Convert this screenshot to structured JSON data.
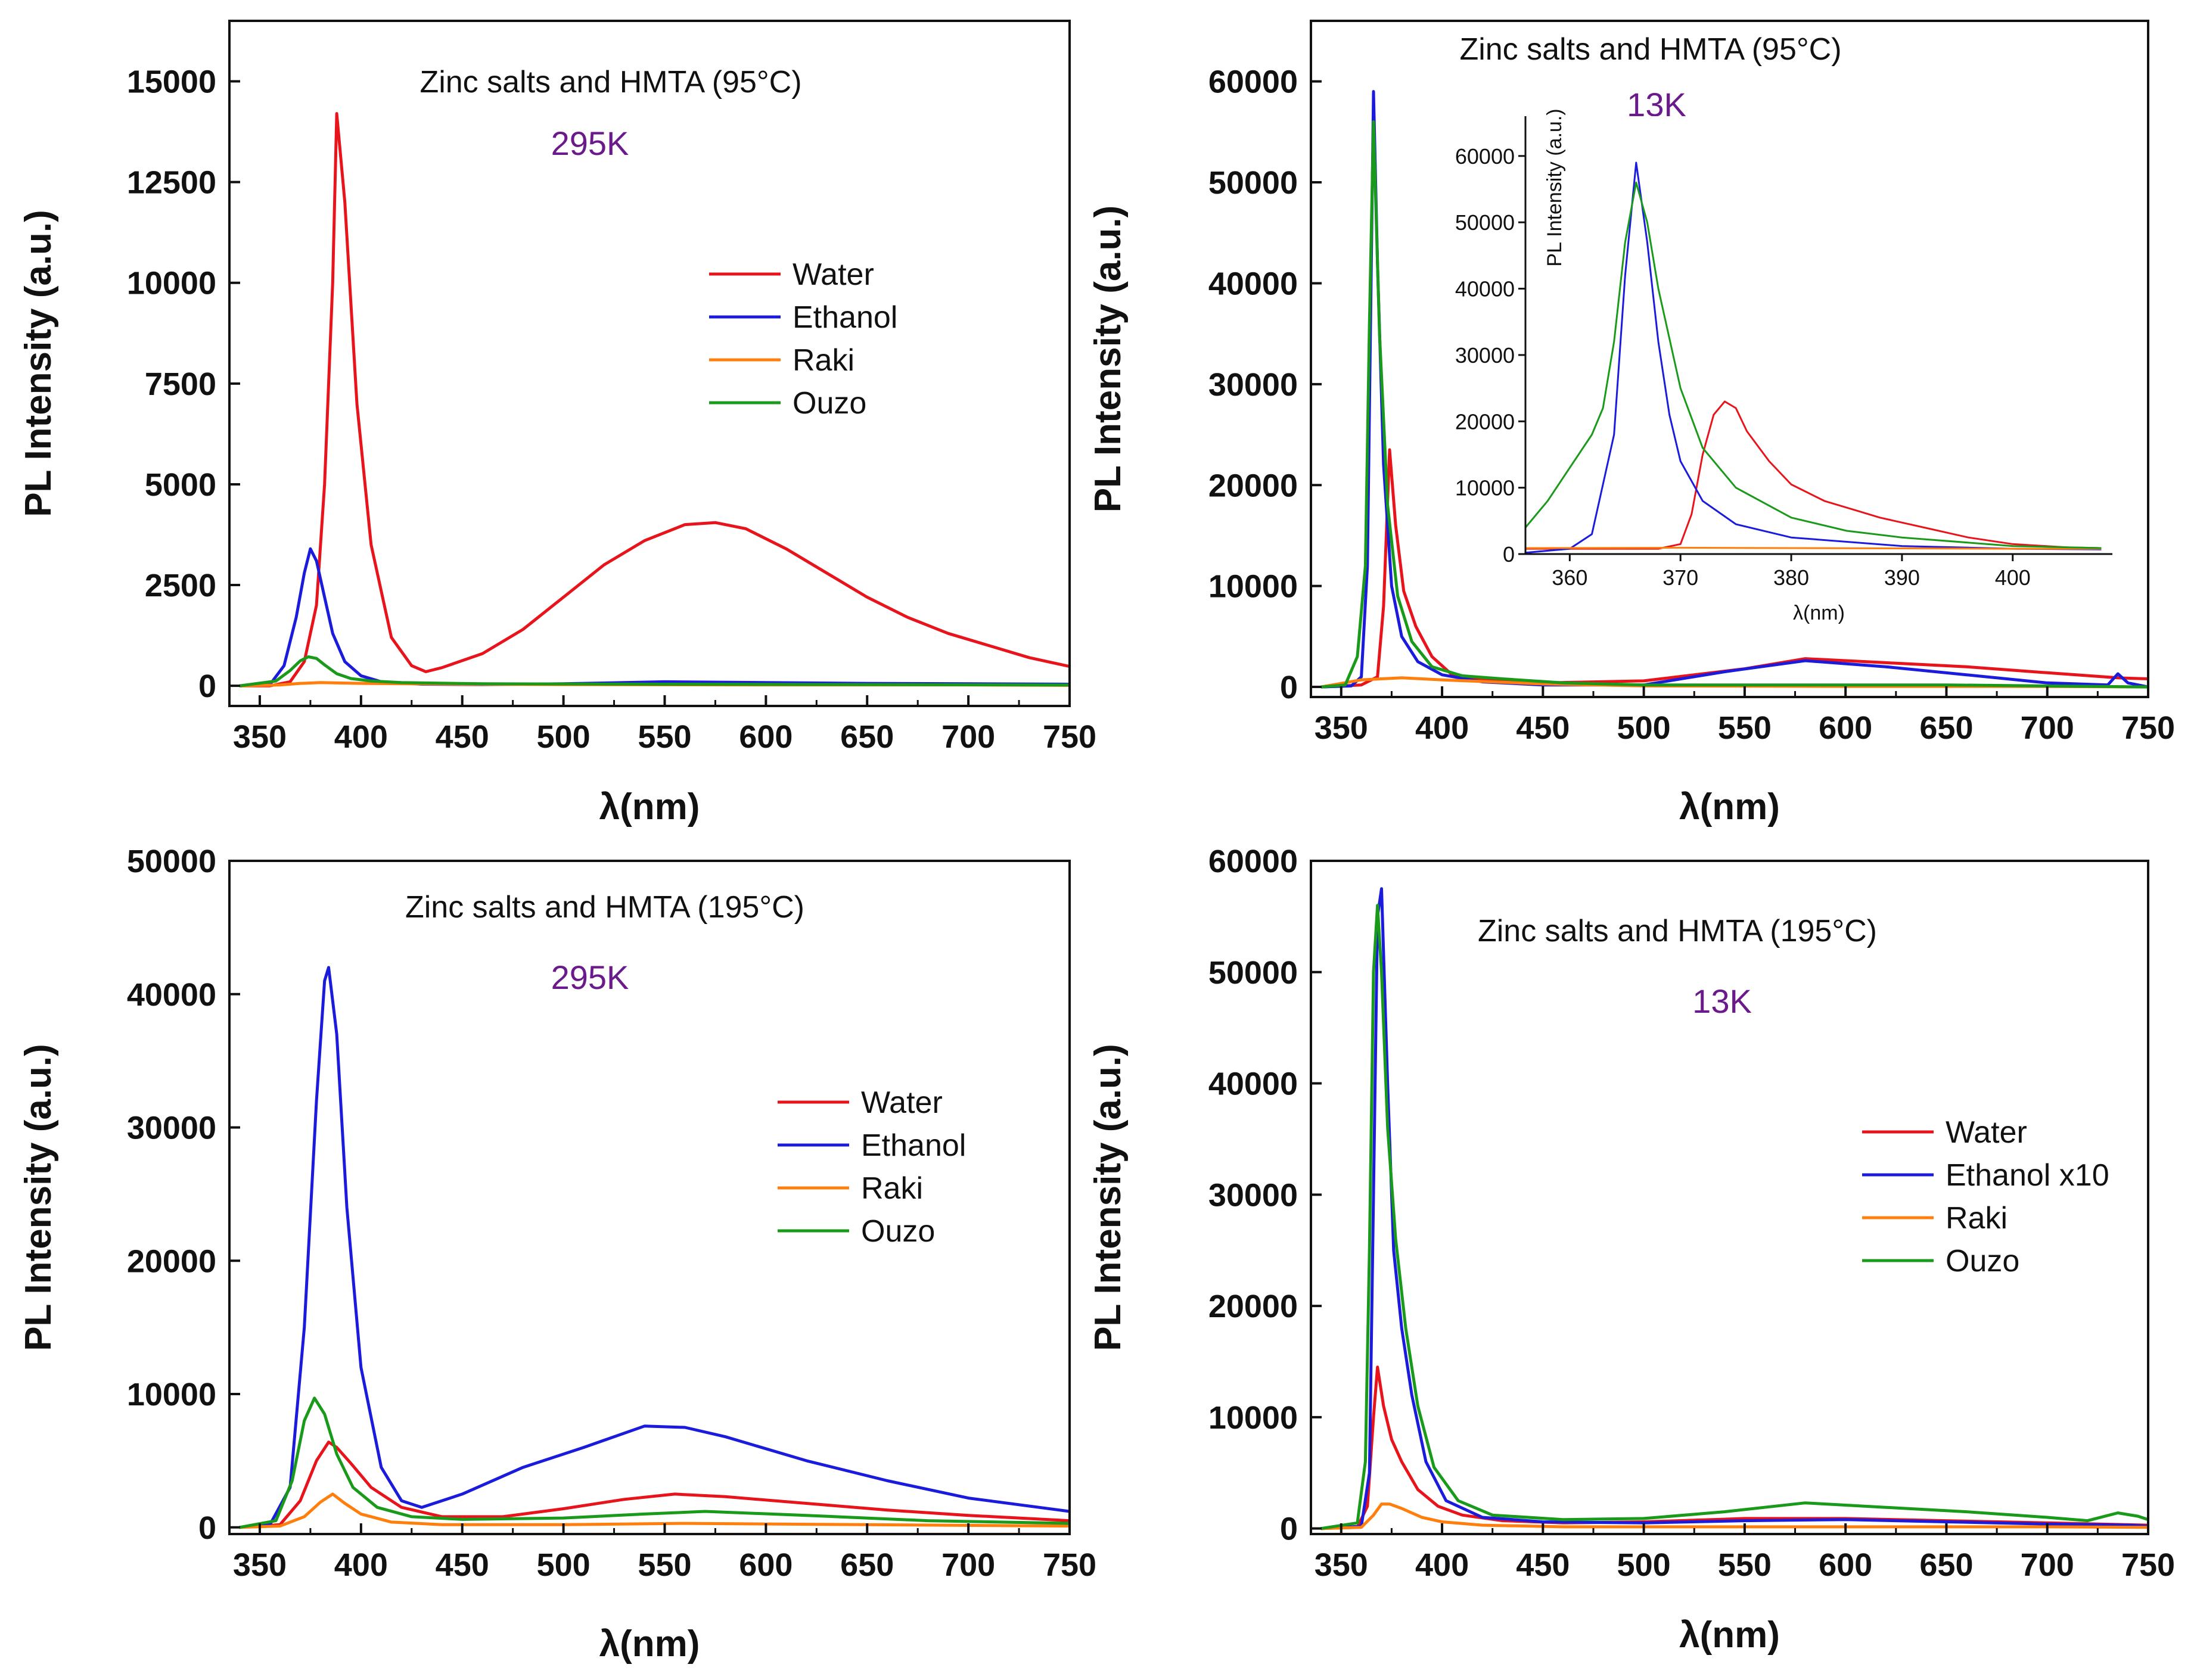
{
  "colors": {
    "Water": "#e8141c",
    "Ethanol": "#1b1bdc",
    "Raki": "#ff7f0e",
    "Ouzo": "#1a9a1a",
    "temperature_label": "#6a1a8a",
    "axis": "#111111"
  },
  "chart_data": [
    {
      "type": "line",
      "panel": "top-left",
      "title": "Zinc salts and HMTA (95°C)",
      "temperature": "295K",
      "xlabel": "λ(nm)",
      "ylabel": "PL Intensity (a.u.)",
      "xlim": [
        335,
        750
      ],
      "ylim": [
        -500,
        16500
      ],
      "xticks": [
        350,
        400,
        450,
        500,
        550,
        600,
        650,
        700,
        750
      ],
      "xtick_labels": [
        "350",
        "400",
        "450",
        "500",
        "550",
        "600",
        "650",
        "700",
        "750"
      ],
      "yticks": [
        0,
        2500,
        5000,
        7500,
        10000,
        12500,
        15000
      ],
      "ytick_labels": [
        "0",
        "2500",
        "5000",
        "7500",
        "10000",
        "12500",
        "15000"
      ],
      "legend": [
        "Water",
        "Ethanol",
        "Raki",
        "Ouzo"
      ],
      "series": [
        {
          "name": "Water",
          "x": [
            340,
            355,
            365,
            372,
            378,
            382,
            386,
            388,
            392,
            398,
            405,
            415,
            425,
            432,
            440,
            460,
            480,
            500,
            520,
            540,
            560,
            575,
            590,
            610,
            630,
            650,
            670,
            690,
            710,
            730,
            750
          ],
          "y": [
            0,
            0,
            100,
            600,
            2000,
            5000,
            10000,
            14200,
            12000,
            7000,
            3500,
            1200,
            500,
            350,
            450,
            800,
            1400,
            2200,
            3000,
            3600,
            4000,
            4050,
            3900,
            3400,
            2800,
            2200,
            1700,
            1300,
            1000,
            700,
            480
          ]
        },
        {
          "name": "Ethanol",
          "x": [
            340,
            355,
            362,
            368,
            372,
            375,
            378,
            382,
            386,
            392,
            400,
            410,
            430,
            460,
            500,
            550,
            600,
            650,
            700,
            750
          ],
          "y": [
            0,
            30,
            500,
            1700,
            2800,
            3400,
            3100,
            2200,
            1300,
            600,
            250,
            100,
            40,
            30,
            50,
            100,
            80,
            60,
            50,
            40
          ]
        },
        {
          "name": "Raki",
          "x": [
            340,
            360,
            370,
            380,
            400,
            450,
            500,
            600,
            650,
            700,
            750
          ],
          "y": [
            0,
            20,
            60,
            80,
            60,
            40,
            30,
            20,
            20,
            20,
            10
          ]
        },
        {
          "name": "Ouzo",
          "x": [
            340,
            358,
            365,
            370,
            374,
            378,
            382,
            388,
            395,
            405,
            420,
            460,
            550,
            650,
            750
          ],
          "y": [
            0,
            120,
            380,
            620,
            720,
            680,
            520,
            300,
            180,
            120,
            80,
            50,
            40,
            30,
            20
          ]
        }
      ]
    },
    {
      "type": "line",
      "panel": "top-right",
      "title": "Zinc salts and HMTA (95°C)",
      "temperature": "13K",
      "xlabel": "λ(nm)",
      "ylabel": "PL Intensity (a.u.)",
      "xlim": [
        335,
        750
      ],
      "ylim": [
        -1000,
        66000
      ],
      "xticks": [
        350,
        400,
        450,
        500,
        550,
        600,
        650,
        700,
        750
      ],
      "xtick_labels": [
        "350",
        "400",
        "450",
        "500",
        "550",
        "600",
        "650",
        "700",
        "750"
      ],
      "yticks": [
        0,
        10000,
        20000,
        30000,
        40000,
        50000,
        60000
      ],
      "ytick_labels": [
        "0",
        "10000",
        "20000",
        "30000",
        "40000",
        "50000",
        "60000"
      ],
      "legend": [
        "Water",
        "Ethanol",
        "Raki",
        "Ouzo"
      ],
      "series": [
        {
          "name": "Water",
          "x": [
            340,
            360,
            368,
            371,
            374,
            377,
            381,
            387,
            395,
            405,
            420,
            450,
            500,
            550,
            580,
            620,
            660,
            700,
            735,
            750
          ],
          "y": [
            0,
            200,
            1000,
            8000,
            23500,
            16000,
            9500,
            6000,
            3000,
            1200,
            700,
            400,
            600,
            1800,
            2800,
            2400,
            2000,
            1400,
            900,
            800
          ]
        },
        {
          "name": "Ethanol",
          "x": [
            340,
            355,
            360,
            363,
            366,
            368,
            371,
            375,
            380,
            388,
            400,
            420,
            450,
            500,
            540,
            580,
            620,
            660,
            700,
            730,
            735,
            740,
            750
          ],
          "y": [
            0,
            100,
            1000,
            12000,
            59000,
            42000,
            22000,
            10000,
            5000,
            2500,
            1200,
            500,
            200,
            200,
            1500,
            2600,
            2000,
            1200,
            400,
            200,
            1300,
            400,
            0
          ]
        },
        {
          "name": "Raki",
          "x": [
            340,
            360,
            380,
            400,
            450,
            500,
            600,
            700,
            750
          ],
          "y": [
            0,
            700,
            900,
            700,
            300,
            100,
            50,
            50,
            0
          ]
        },
        {
          "name": "Ouzo",
          "x": [
            340,
            352,
            358,
            362,
            364,
            366,
            369,
            373,
            378,
            385,
            395,
            410,
            430,
            460,
            500,
            560,
            650,
            750
          ],
          "y": [
            0,
            200,
            3000,
            12000,
            36000,
            56000,
            35000,
            18000,
            9000,
            4500,
            2000,
            1100,
            800,
            400,
            200,
            200,
            200,
            0
          ]
        }
      ],
      "inset": {
        "xlabel": "λ(nm)",
        "ylabel": "PL Intensity (a.u.)",
        "xlim": [
          356,
          409
        ],
        "ylim": [
          0,
          66000
        ],
        "xticks": [
          360,
          370,
          380,
          390,
          400
        ],
        "xtick_labels": [
          "360",
          "370",
          "380",
          "390",
          "400"
        ],
        "yticks": [
          0,
          10000,
          20000,
          30000,
          40000,
          50000,
          60000
        ],
        "ytick_labels": [
          "0",
          "10000",
          "20000",
          "30000",
          "40000",
          "50000",
          "60000"
        ],
        "series": [
          {
            "name": "Water",
            "x": [
              356,
              368,
              370,
              371,
              372,
              373,
              374,
              375,
              376,
              378,
              380,
              383,
              386,
              388,
              392,
              396,
              400,
              405,
              408
            ],
            "y": [
              800,
              800,
              1500,
              6000,
              15000,
              21000,
              23000,
              22000,
              18500,
              14000,
              10500,
              8000,
              6500,
              5500,
              4000,
              2500,
              1500,
              1000,
              900
            ]
          },
          {
            "name": "Ethanol",
            "x": [
              356,
              360,
              362,
              364,
              365,
              366,
              367,
              368,
              369,
              370,
              372,
              375,
              380,
              390,
              400,
              408
            ],
            "y": [
              200,
              800,
              3000,
              18000,
              42000,
              59000,
              47000,
              32000,
              21000,
              14000,
              8000,
              4500,
              2500,
              1200,
              800,
              700
            ]
          },
          {
            "name": "Raki",
            "x": [
              356,
              370,
              380,
              390,
              400,
              408
            ],
            "y": [
              900,
              950,
              900,
              850,
              800,
              800
            ]
          },
          {
            "name": "Ouzo",
            "x": [
              356,
              358,
              360,
              362,
              363,
              364,
              365,
              366,
              367,
              368,
              370,
              372,
              375,
              380,
              385,
              390,
              400,
              408
            ],
            "y": [
              4000,
              8000,
              13000,
              18000,
              22000,
              32000,
              47000,
              56000,
              50000,
              40000,
              25000,
              16000,
              10000,
              5500,
              3500,
              2500,
              1200,
              900
            ]
          }
        ]
      }
    },
    {
      "type": "line",
      "panel": "bottom-left",
      "title": "Zinc salts and HMTA (195°C)",
      "temperature": "295K",
      "xlabel": "λ(nm)",
      "ylabel": "PL Intensity (a.u.)",
      "xlim": [
        335,
        750
      ],
      "ylim": [
        -500,
        50000
      ],
      "xticks": [
        350,
        400,
        450,
        500,
        550,
        600,
        650,
        700,
        750
      ],
      "xtick_labels": [
        "350",
        "400",
        "450",
        "500",
        "550",
        "600",
        "650",
        "700",
        "750"
      ],
      "yticks": [
        0,
        10000,
        20000,
        30000,
        40000,
        50000
      ],
      "ytick_labels": [
        "0",
        "10000",
        "20000",
        "30000",
        "40000",
        "50000"
      ],
      "legend": [
        "Water",
        "Ethanol",
        "Raki",
        "Ouzo"
      ],
      "series": [
        {
          "name": "Water",
          "x": [
            340,
            360,
            370,
            378,
            384,
            388,
            395,
            405,
            420,
            440,
            470,
            500,
            530,
            555,
            580,
            620,
            660,
            700,
            750
          ],
          "y": [
            0,
            200,
            2000,
            5000,
            6400,
            6000,
            4800,
            3000,
            1500,
            800,
            800,
            1400,
            2100,
            2500,
            2300,
            1800,
            1300,
            900,
            500
          ]
        },
        {
          "name": "Ethanol",
          "x": [
            340,
            355,
            365,
            372,
            378,
            382,
            384,
            388,
            393,
            400,
            410,
            420,
            430,
            450,
            480,
            510,
            540,
            560,
            580,
            620,
            660,
            700,
            750
          ],
          "y": [
            0,
            200,
            3000,
            15000,
            32000,
            41000,
            42000,
            37000,
            24000,
            12000,
            4500,
            2000,
            1500,
            2500,
            4500,
            6000,
            7600,
            7500,
            6800,
            5000,
            3500,
            2200,
            1200
          ]
        },
        {
          "name": "Raki",
          "x": [
            340,
            360,
            372,
            380,
            386,
            392,
            400,
            415,
            440,
            500,
            560,
            650,
            750
          ],
          "y": [
            0,
            100,
            800,
            1900,
            2500,
            1800,
            1000,
            400,
            200,
            200,
            300,
            200,
            100
          ]
        },
        {
          "name": "Ouzo",
          "x": [
            340,
            358,
            366,
            372,
            377,
            382,
            388,
            396,
            408,
            425,
            450,
            500,
            540,
            570,
            620,
            680,
            750
          ],
          "y": [
            0,
            500,
            3500,
            8000,
            9700,
            8500,
            5500,
            3000,
            1500,
            800,
            600,
            700,
            1000,
            1200,
            900,
            500,
            300
          ]
        }
      ]
    },
    {
      "type": "line",
      "panel": "bottom-right",
      "title": "Zinc salts and HMTA (195°C)",
      "temperature": "13K",
      "xlabel": "λ(nm)",
      "ylabel": "PL Intensity (a.u.)",
      "xlim": [
        335,
        750
      ],
      "ylim": [
        -500,
        60000
      ],
      "xticks": [
        350,
        400,
        450,
        500,
        550,
        600,
        650,
        700,
        750
      ],
      "xtick_labels": [
        "350",
        "400",
        "450",
        "500",
        "550",
        "600",
        "650",
        "700",
        "750"
      ],
      "yticks": [
        0,
        10000,
        20000,
        30000,
        40000,
        50000,
        60000
      ],
      "ytick_labels": [
        "0",
        "10000",
        "20000",
        "30000",
        "40000",
        "50000",
        "60000"
      ],
      "legend": [
        "Water",
        "Ethanol x10",
        "Raki",
        "Ouzo"
      ],
      "series": [
        {
          "name": "Water",
          "x": [
            340,
            358,
            363,
            366,
            368,
            371,
            375,
            380,
            388,
            398,
            410,
            430,
            460,
            500,
            550,
            600,
            650,
            700,
            750
          ],
          "y": [
            0,
            100,
            2000,
            10000,
            14500,
            11000,
            8000,
            6000,
            3500,
            2000,
            1200,
            700,
            500,
            600,
            900,
            900,
            700,
            500,
            300
          ]
        },
        {
          "name": "Ethanol x10",
          "x": [
            340,
            360,
            364,
            366,
            368,
            370,
            373,
            376,
            380,
            385,
            392,
            402,
            420,
            450,
            500,
            550,
            600,
            650,
            700,
            740,
            750
          ],
          "y": [
            0,
            200,
            5000,
            30000,
            55000,
            57500,
            40000,
            25000,
            18000,
            12000,
            6000,
            2500,
            1000,
            600,
            500,
            700,
            800,
            600,
            400,
            300,
            200
          ]
        },
        {
          "name": "Raki",
          "x": [
            340,
            360,
            366,
            370,
            374,
            380,
            390,
            400,
            420,
            460,
            520,
            600,
            700,
            750
          ],
          "y": [
            0,
            100,
            1200,
            2200,
            2200,
            1800,
            1000,
            600,
            300,
            150,
            150,
            150,
            150,
            100
          ]
        },
        {
          "name": "Ouzo",
          "x": [
            340,
            358,
            362,
            364,
            366,
            368,
            370,
            373,
            377,
            382,
            388,
            396,
            408,
            425,
            460,
            500,
            540,
            580,
            620,
            660,
            700,
            720,
            735,
            745,
            750
          ],
          "y": [
            0,
            500,
            6000,
            25000,
            50000,
            56000,
            50000,
            36000,
            26000,
            18000,
            11000,
            5500,
            2500,
            1200,
            800,
            900,
            1500,
            2300,
            1900,
            1500,
            1000,
            700,
            1400,
            1100,
            800
          ]
        }
      ]
    }
  ]
}
